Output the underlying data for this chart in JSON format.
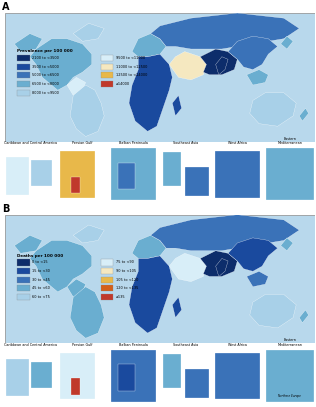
{
  "panel_labels": [
    "A",
    "B"
  ],
  "legend_a_title": "Prevalence per 100 000",
  "legend_a_entries": [
    "2100 to <3500",
    "3500 to <5000",
    "5000 to <6500",
    "6500 to <8000",
    "8000 to <9500",
    "9500 to <11000",
    "11000 to <12500",
    "12500 to <14000",
    "≥14000"
  ],
  "legend_a_colors": [
    "#0d2d6b",
    "#1a4a9e",
    "#3a72b8",
    "#6aaed0",
    "#a8d0e8",
    "#d8eef8",
    "#f5e8c0",
    "#e8b84a",
    "#c0392b"
  ],
  "legend_b_title": "Deaths per 100 000",
  "legend_b_entries": [
    "0 to <15",
    "15 to <30",
    "30 to <45",
    "45 to <60",
    "60 to <75",
    "75 to <90",
    "90 to <105",
    "105 to <120",
    "120 to <135",
    "≥135"
  ],
  "legend_b_colors": [
    "#0d2d6b",
    "#1a4a9e",
    "#3a72b8",
    "#6aaed0",
    "#a8d0e8",
    "#d8eef8",
    "#f5e8c0",
    "#e8b84a",
    "#d4601a",
    "#c0392b"
  ],
  "inset_labels": [
    "Caribbean and Central America",
    "Persian Gulf",
    "Balkan Peninsula",
    "Southeast Asia",
    "West Africa",
    "Eastern\nMediterranean"
  ],
  "ocean_color": "#b8d8ec",
  "background": "#ffffff",
  "fig_w": 3.16,
  "fig_h": 4.0
}
